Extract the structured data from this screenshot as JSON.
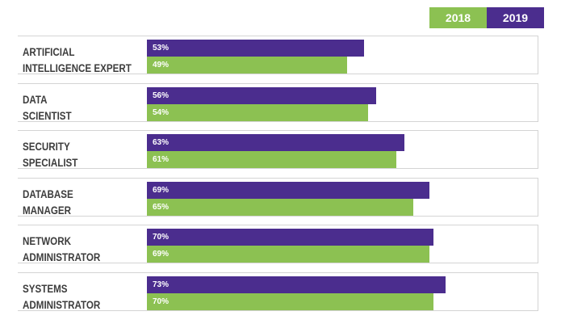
{
  "legend": [
    {
      "label": "2018",
      "color": "#8cc152"
    },
    {
      "label": "2019",
      "color": "#4b2d8e"
    }
  ],
  "chart_data": {
    "type": "bar",
    "orientation": "horizontal",
    "categories": [
      [
        "ARTIFICIAL",
        "INTELLIGENCE EXPERT"
      ],
      [
        "DATA",
        "SCIENTIST"
      ],
      [
        "SECURITY",
        "SPECIALIST"
      ],
      [
        "DATABASE",
        "MANAGER"
      ],
      [
        "NETWORK",
        "ADMINISTRATOR"
      ],
      [
        "SYSTEMS",
        "ADMINISTRATOR"
      ]
    ],
    "series": [
      {
        "name": "2019",
        "color": "#4b2d8e",
        "values": [
          53,
          56,
          63,
          69,
          70,
          73
        ],
        "labels": [
          "53%",
          "56%",
          "63%",
          "69%",
          "70%",
          "73%"
        ]
      },
      {
        "name": "2018",
        "color": "#8cc152",
        "values": [
          49,
          54,
          61,
          65,
          69,
          70
        ],
        "labels": [
          "49%",
          "54%",
          "61%",
          "65%",
          "69%",
          "70%"
        ]
      }
    ],
    "xlim": [
      0,
      100
    ],
    "grid": false,
    "legend_position": "top-right"
  }
}
